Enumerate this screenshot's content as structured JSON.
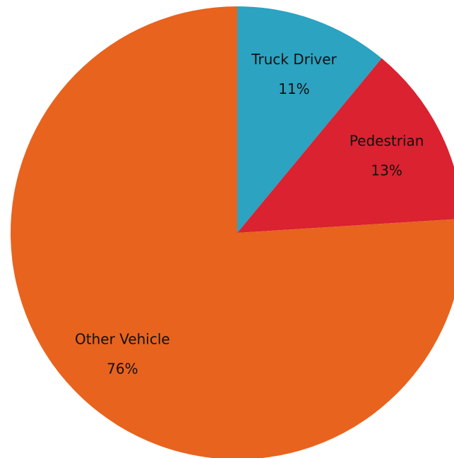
{
  "chart_data": {
    "type": "pie",
    "categories": [
      "Truck Driver",
      "Pedestrian",
      "Other Vehicle"
    ],
    "values": [
      11,
      13,
      76
    ],
    "value_labels": [
      "11%",
      "13%",
      "76%"
    ],
    "colors": [
      "#2ba3c1",
      "#da2230",
      "#e8631e"
    ]
  }
}
